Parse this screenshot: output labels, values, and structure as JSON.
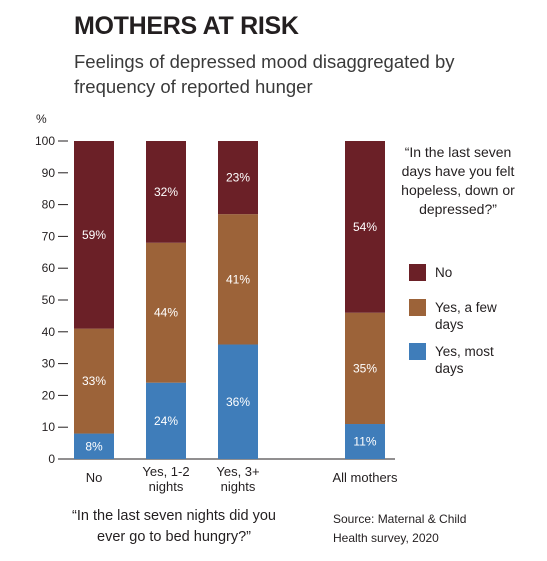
{
  "title": "MOTHERS AT RISK",
  "subtitle": "Feelings of depressed mood disaggregated by frequency of reported hunger",
  "question": "“In the last seven days have you felt hopeless, down or depressed?”",
  "legend": [
    {
      "label": "No",
      "color": "#6b2027"
    },
    {
      "label": "Yes, a few days",
      "color": "#9c6339"
    },
    {
      "label": "Yes, most days",
      "color": "#3f7dba"
    }
  ],
  "hunger_question": "“In the last seven nights did you ever go to bed hungry?”",
  "source": "Source: Maternal & Child Health survey, 2020",
  "chart_data": {
    "type": "bar",
    "stacked": true,
    "ylabel": "%",
    "ylim": [
      0,
      100
    ],
    "yticks": [
      0,
      10,
      20,
      30,
      40,
      50,
      60,
      70,
      80,
      90,
      100
    ],
    "categories": [
      [
        "No"
      ],
      [
        "Yes, 1-2",
        "nights"
      ],
      [
        "Yes, 3+",
        "nights"
      ],
      [
        "All mothers"
      ]
    ],
    "series": [
      {
        "name": "Yes, most days",
        "color": "#3f7dba",
        "values": [
          8,
          24,
          36,
          11
        ],
        "labels": [
          "8%",
          "24%",
          "36%",
          "11%"
        ]
      },
      {
        "name": "Yes, a few days",
        "color": "#9c6339",
        "values": [
          33,
          44,
          41,
          35
        ],
        "labels": [
          "33%",
          "44%",
          "41%",
          "35%"
        ]
      },
      {
        "name": "No",
        "color": "#6b2027",
        "values": [
          59,
          32,
          23,
          54
        ],
        "labels": [
          "59%",
          "32%",
          "23%",
          "54%"
        ]
      }
    ]
  }
}
